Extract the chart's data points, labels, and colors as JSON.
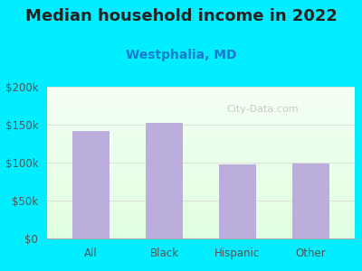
{
  "title": "Median household income in 2022",
  "subtitle": "Westphalia, MD",
  "categories": [
    "All",
    "Black",
    "Hispanic",
    "Other"
  ],
  "values": [
    142000,
    152000,
    98000,
    99000
  ],
  "bar_color": "#bbaedd",
  "title_fontsize": 13,
  "subtitle_fontsize": 10,
  "subtitle_color": "#1a7acc",
  "title_color": "#222222",
  "tick_label_color": "#555550",
  "background_outer": "#00eeff",
  "plot_bg_top": "#e8f5e9",
  "plot_bg_bottom": "#f8fff8",
  "ylim": [
    0,
    200000
  ],
  "yticks": [
    0,
    50000,
    100000,
    150000,
    200000
  ],
  "ytick_labels": [
    "$0",
    "$50k",
    "$100k",
    "$150k",
    "$200k"
  ],
  "watermark": "City-Data.com",
  "grid_color": "#dddddd"
}
